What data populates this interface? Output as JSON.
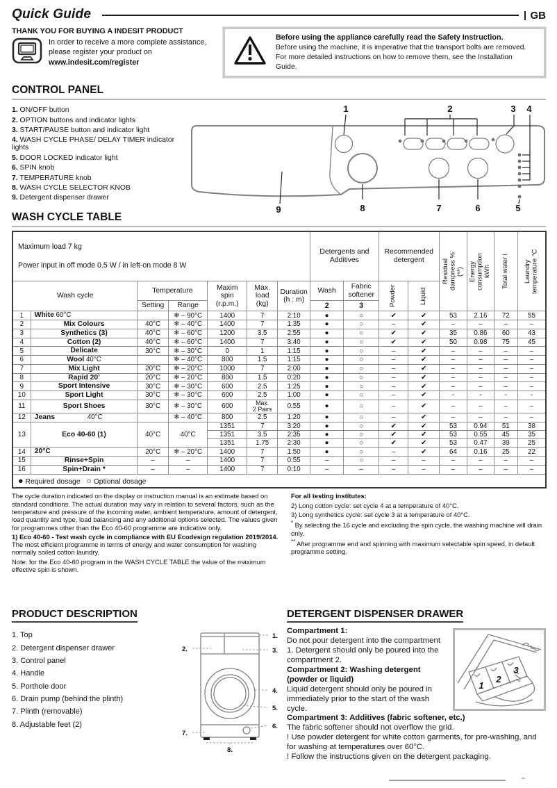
{
  "header": {
    "title": "Quick Guide",
    "lang": "GB"
  },
  "intro": {
    "title": "THANK YOU FOR BUYING A INDESIT PRODUCT",
    "text": "In order to receive a more complete assistance, please register your product on",
    "url": "www.indesit.com/register"
  },
  "warning": {
    "title": "Before using the appliance carefully read the Safety Instruction.",
    "line2": "Before using the machine, it is imperative that the transport bolts are removed.",
    "line3": "For more detailed instructions on how to remove them, see the Installation Guide."
  },
  "control_panel": {
    "heading": "CONTROL PANEL",
    "items": [
      {
        "num": "1.",
        "label": "ON/OFF button"
      },
      {
        "num": "2.",
        "label": "OPTION buttons and indicator lights"
      },
      {
        "num": "3.",
        "label": "START/PAUSE button and indicator light"
      },
      {
        "num": "4.",
        "label": "WASH CYCLE PHASE/ DELAY TIMER indicator lights"
      },
      {
        "num": "5.",
        "label": "DOOR LOCKED indicator light"
      },
      {
        "num": "6.",
        "label": "SPIN knob"
      },
      {
        "num": "7.",
        "label": "TEMPERATURE knob"
      },
      {
        "num": "8.",
        "label": "WASH CYCLE SELECTOR KNOB"
      },
      {
        "num": "9.",
        "label": "Detergent dispenser drawer"
      }
    ],
    "diagram": {
      "callouts": [
        "1",
        "2",
        "3",
        "4",
        "5",
        "6",
        "7",
        "8",
        "9"
      ]
    }
  },
  "wash_table": {
    "heading": "WASH CYCLE TABLE",
    "info_line1": "Maximum load 7 kg",
    "info_line2": "Power input in off  mode 0.5 W / in left-on mode 8 W",
    "headers": {
      "wash_cycle": "Wash cycle",
      "temperature": "Temperature",
      "setting": "Setting",
      "range": "Range",
      "max_spin": "Maxim\nspin\n(r.p.m.)",
      "max_load": "Max.\nload\n(kg)",
      "duration": "Duration\n(h : m)",
      "detergents": "Detergents and\nAdditives",
      "recommended": "Recommended\ndetergent",
      "wash": "Wash",
      "fabric_softener": "Fabric\nsoftener",
      "wash_num": "2",
      "softener_num": "3",
      "powder": "Powder",
      "liquid": "Liquid",
      "residual": "Residual dampness % (**)",
      "energy": "Energy consumption kWh",
      "water": "Total water l",
      "laundry_temp": "Laundry temperature °C"
    },
    "rows": [
      {
        "n": "1",
        "name": "White",
        "sfx": "60°C",
        "la": true,
        "set": "",
        "rng": "❄ – 90°C",
        "spin": "1400",
        "load": "7",
        "dur": "2:10",
        "w": "●",
        "s": "○",
        "p": "✔",
        "l": "✔",
        "rd": "53",
        "en": "2.16",
        "tw": "72",
        "lt": "55"
      },
      {
        "n": "2",
        "name": "Mix Colours",
        "set": "40°C",
        "rng": "❄ – 40°C",
        "spin": "1400",
        "load": "7",
        "dur": "1:35",
        "w": "●",
        "s": "○",
        "p": "–",
        "l": "✔",
        "rd": "–",
        "en": "–",
        "tw": "–",
        "lt": "–"
      },
      {
        "n": "3",
        "name": "Synthetics (3)",
        "set": "40°C",
        "rng": "❄ – 60°C",
        "spin": "1200",
        "load": "3.5",
        "dur": "2:55",
        "w": "●",
        "s": "○",
        "p": "✔",
        "l": "✔",
        "rd": "35",
        "en": "0.86",
        "tw": "60",
        "lt": "43"
      },
      {
        "n": "4",
        "name": "Cotton (2)",
        "set": "40°C",
        "rng": "❄ – 60°C",
        "spin": "1400",
        "load": "7",
        "dur": "3:40",
        "w": "●",
        "s": "○",
        "p": "✔",
        "l": "✔",
        "rd": "50",
        "en": "0.98",
        "tw": "75",
        "lt": "45"
      },
      {
        "n": "5",
        "name": "Delicate",
        "set": "30°C",
        "rng": "❄ – 30°C",
        "spin": "0",
        "load": "1",
        "dur": "1:15",
        "w": "●",
        "s": "○",
        "p": "–",
        "l": "✔",
        "rd": "–",
        "en": "–",
        "tw": "–",
        "lt": "–"
      },
      {
        "n": "6",
        "name": "Wool",
        "sfx": "40°C",
        "set": "",
        "rng": "❄ – 40°C",
        "spin": "800",
        "load": "1.5",
        "dur": "1:15",
        "w": "●",
        "s": "○",
        "p": "–",
        "l": "✔",
        "rd": "–",
        "en": "–",
        "tw": "–",
        "lt": "–"
      },
      {
        "n": "7",
        "name": "Mix Light",
        "set": "20°C",
        "rng": "❄ – 20°C",
        "spin": "1000",
        "load": "7",
        "dur": "2:00",
        "w": "●",
        "s": "○",
        "p": "–",
        "l": "✔",
        "rd": "–",
        "en": "–",
        "tw": "–",
        "lt": "–"
      },
      {
        "n": "8",
        "name": "Rapid 20’",
        "set": "20°C",
        "rng": "❄ – 20°C",
        "spin": "800",
        "load": "1.5",
        "dur": "0:20",
        "w": "●",
        "s": "○",
        "p": "–",
        "l": "✔",
        "rd": "–",
        "en": "–",
        "tw": "–",
        "lt": "–"
      },
      {
        "n": "9",
        "name": "Sport Intensive",
        "set": "30°C",
        "rng": "❄ – 30°C",
        "spin": "600",
        "load": "2.5",
        "dur": "1:25",
        "w": "●",
        "s": "○",
        "p": "–",
        "l": "✔",
        "rd": "–",
        "en": "–",
        "tw": "–",
        "lt": "–"
      },
      {
        "n": "10",
        "name": "Sport Light",
        "set": "30°C",
        "rng": "❄ – 30°C",
        "spin": "600",
        "load": "2.5",
        "dur": "1:00",
        "w": "●",
        "s": "○",
        "p": "–",
        "l": "✔",
        "rd": "-",
        "en": "-",
        "tw": "-",
        "lt": "-"
      },
      {
        "n": "11",
        "name": "Sport Shoes",
        "set": "30°C",
        "rng": "❄ – 30°C",
        "spin": "600",
        "load": "Max.\n2 Pairs",
        "load2": true,
        "dur": "0:55",
        "w": "●",
        "s": "○",
        "p": "–",
        "l": "✔",
        "rd": "–",
        "en": "–",
        "tw": "–",
        "lt": "–"
      },
      {
        "n": "12",
        "name": "Jeans",
        "sfx": "40°C",
        "la": true,
        "gap": true,
        "set": "",
        "rng": "❄ – 40°C",
        "spin": "800",
        "load": "2.5",
        "dur": "1:20",
        "w": "●",
        "s": "○",
        "p": "–",
        "l": "✔",
        "rd": "–",
        "en": "–",
        "tw": "–",
        "lt": "–"
      },
      {
        "n": "13",
        "name": "Eco 40-60 (1)",
        "set": "40°C",
        "rng": "40°C",
        "sub": [
          {
            "spin": "1351",
            "load": "7",
            "dur": "3:20",
            "w": "●",
            "s": "○",
            "p": "✔",
            "l": "✔",
            "rd": "53",
            "en": "0.94",
            "tw": "51",
            "lt": "38"
          },
          {
            "spin": "1351",
            "load": "3.5",
            "dur": "2:35",
            "w": "●",
            "s": "○",
            "p": "✔",
            "l": "✔",
            "rd": "53",
            "en": "0.55",
            "tw": "45",
            "lt": "35"
          },
          {
            "spin": "1351",
            "load": "1.75",
            "dur": "2:30",
            "w": "●",
            "s": "○",
            "p": "✔",
            "l": "✔",
            "rd": "53",
            "en": "0.47",
            "tw": "39",
            "lt": "25"
          }
        ]
      },
      {
        "n": "14",
        "name": "20°C",
        "la": true,
        "set": "20°C",
        "rng": "❄ – 20°C",
        "spin": "1400",
        "load": "7",
        "dur": "1:50",
        "w": "●",
        "s": "○",
        "p": "–",
        "l": "✔",
        "rd": "64",
        "en": "0.16",
        "tw": "25",
        "lt": "22"
      },
      {
        "n": "15",
        "name": "Rinse+Spin",
        "set": "–",
        "rng": "–",
        "spin": "1400",
        "load": "7",
        "dur": "0:55",
        "w": "–",
        "s": "○",
        "p": "–",
        "l": "–",
        "rd": "–",
        "en": "–",
        "tw": "–",
        "lt": "–"
      },
      {
        "n": "16",
        "name": "Spin+Drain *",
        "set": "–",
        "rng": "–",
        "spin": "1400",
        "load": "7",
        "dur": "0:10",
        "w": "–",
        "s": "–",
        "p": "–",
        "l": "–",
        "rd": "–",
        "en": "–",
        "tw": "–",
        "lt": "–"
      }
    ],
    "legend": {
      "required_glyph": "●",
      "required": "Required dosage",
      "optional_glyph": "○",
      "optional": "Optional dosage"
    }
  },
  "footnotes": {
    "left_p1": "The cycle duration indicated on the display or instruction manual is an estimate based on standard conditions. The actual duration may vary in relation to several factors, such as the temperature and pressure of the incoming water, ambient temperature, amount of detergent, load quantity and type, load balancing and any additional options selected. The values given for programmes other than the Eco 40-60 programme are indicative only.",
    "left_p2_bold": "1) Eco 40-60 - Test wash cycle in compliance with EU Ecodesign regulation 2019/2014.",
    "left_p2": "The most efficient programme in terms of energy and water consumption for washing normally soiled cotton laundry.",
    "left_p3": "Note: for the Eco 40-60 program in the WASH CYCLE TABLE the value of the maximum effective spin is shown.",
    "right_bold": "For all testing institutes:",
    "right_l1": "2)  Long cotton cycle: set cycle 4 at a temperature of 40°C.",
    "right_l2": "3)  Long synthetics cycle: set cycle 3 at a temperature of 40°C.",
    "right_l3_sup": "*",
    "right_l3": " By selecting the 16 cycle and excluding the spin cycle, the washing machine will drain only.",
    "right_l4_sup": "**",
    "right_l4": " After programme end and spinning with maximum selectable spin speed, in default programme setting."
  },
  "product": {
    "heading": "PRODUCT DESCRIPTION",
    "items": [
      {
        "num": "1.",
        "label": "Top"
      },
      {
        "num": "2.",
        "label": "Detergent dispenser drawer"
      },
      {
        "num": "3.",
        "label": "Control panel"
      },
      {
        "num": "4.",
        "label": "Handle"
      },
      {
        "num": "5.",
        "label": "Porthole door"
      },
      {
        "num": "6.",
        "label": "Drain pump (behind the plinth)"
      },
      {
        "num": "7.",
        "label": "Plinth (removable)"
      },
      {
        "num": "8.",
        "label": "Adjustable feet (2)"
      }
    ],
    "diagram": {
      "callouts": [
        "1.",
        "2.",
        "3.",
        "4.",
        "5.",
        "6.",
        "7.",
        "8."
      ]
    }
  },
  "dispenser": {
    "heading": "DETERGENT DISPENSER DRAWER",
    "c1_bold": "Compartment 1:",
    "c1_text": "Do not pour detergent into the compartment 1. Detergent should only be poured into the compartment 2.",
    "c2_bold": "Compartment 2: Washing detergent (powder or liquid)",
    "c2_text": "Liquid detergent should only be poured in immediately prior to the start of the wash cycle.",
    "c3_bold": "Compartment 3: Additives (fabric softener, etc.)",
    "c3_text": "The fabric softener should not overflow the grid.",
    "note1": "! Use powder detergent for white cotton garments, for pre-washing, and for washing at temperatures over 60°C.",
    "note2": "! Follow the instructions given on the detergent packaging.",
    "diagram": {
      "labels": [
        "1",
        "2",
        "3"
      ]
    }
  },
  "colors": {
    "text": "#141414",
    "table_border": "#3a3a3a",
    "grid": "#8c8c8c",
    "rule": "#b3b3b3"
  }
}
